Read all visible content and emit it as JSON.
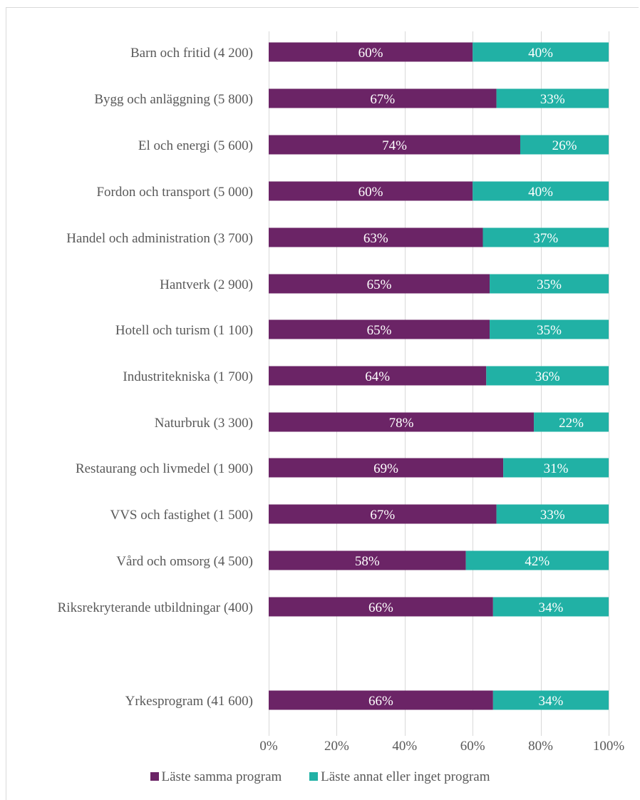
{
  "chart_data": {
    "type": "bar",
    "orientation": "horizontal",
    "stacked": true,
    "categories": [
      "Barn och fritid (4 200)",
      "Bygg och anläggning (5 800)",
      "El och energi (5 600)",
      "Fordon och transport (5 000)",
      "Handel och administration (3 700)",
      "Hantverk (2 900)",
      "Hotell och turism (1 100)",
      "Industritekniska (1 700)",
      "Naturbruk (3 300)",
      "Restaurang och livmedel (1 900)",
      "VVS och fastighet (1 500)",
      "Vård och omsorg (4 500)",
      "Riksrekryterande utbildningar (400)",
      "Yrkesprogram (41 600)"
    ],
    "series": [
      {
        "name": "Läste samma program",
        "color": "#6b2466",
        "values": [
          60,
          67,
          74,
          60,
          63,
          65,
          65,
          64,
          78,
          69,
          67,
          58,
          66,
          66
        ],
        "labels": [
          "60%",
          "67%",
          "74%",
          "60%",
          "63%",
          "65%",
          "65%",
          "64%",
          "78%",
          "69%",
          "67%",
          "58%",
          "66%",
          "66%"
        ]
      },
      {
        "name": "Läste annat eller inget program",
        "color": "#21b1a5",
        "values": [
          40,
          33,
          26,
          40,
          37,
          35,
          35,
          36,
          22,
          31,
          33,
          42,
          34,
          34
        ],
        "labels": [
          "40%",
          "33%",
          "26%",
          "40%",
          "37%",
          "35%",
          "35%",
          "36%",
          "22%",
          "31%",
          "33%",
          "42%",
          "34%",
          "34%"
        ]
      }
    ],
    "xlim": [
      0,
      100
    ],
    "x_ticks": [
      "0%",
      "20%",
      "40%",
      "60%",
      "80%",
      "100%"
    ],
    "grid": true,
    "legend_position": "bottom"
  }
}
